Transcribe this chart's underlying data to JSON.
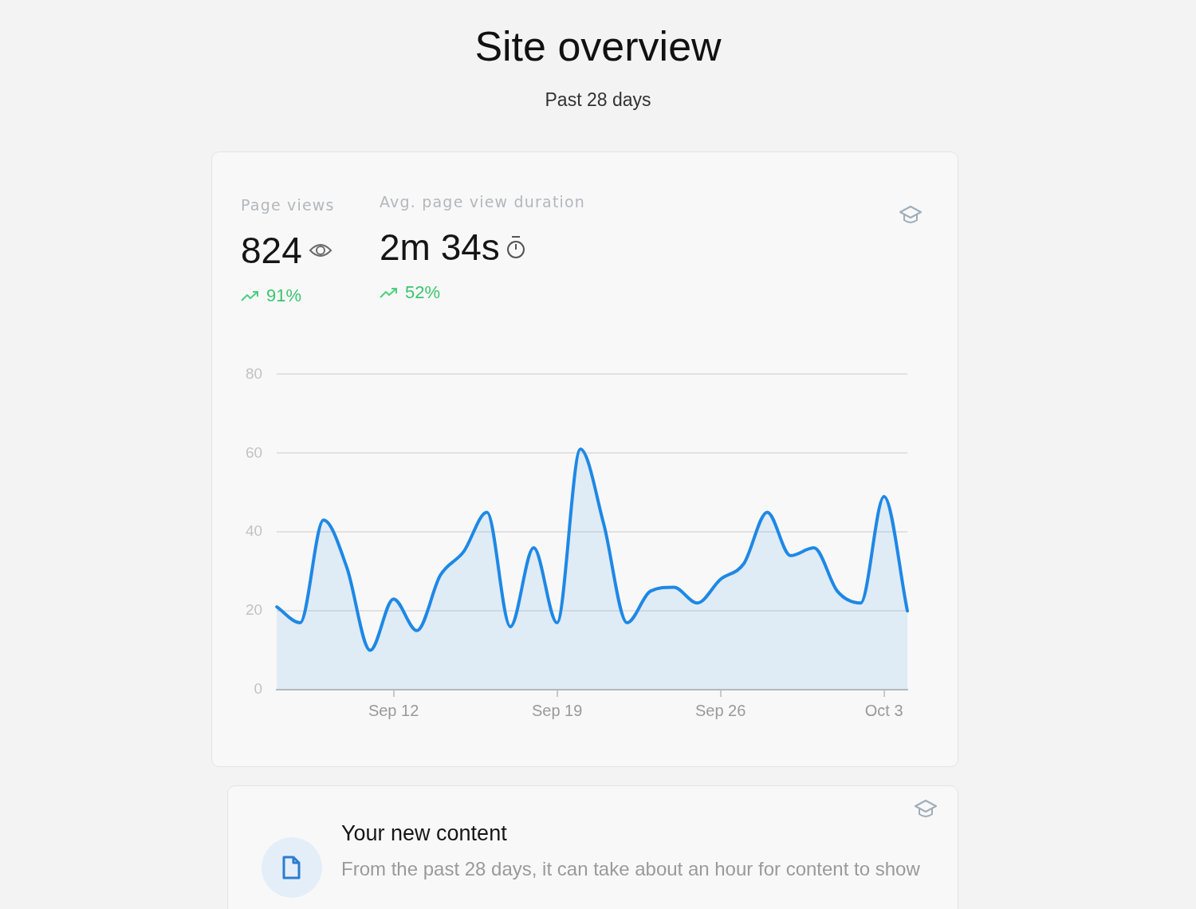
{
  "chart_data": {
    "type": "area",
    "title": "Site overview",
    "subtitle": "Past 28 days",
    "annotations": [
      "Page views",
      "824",
      "91%",
      "Avg. page view duration",
      "2m 34s",
      "52%",
      "Your new content",
      "From the past 28 days, it can take about an hour for content to show"
    ],
    "categories": [
      null,
      null,
      null,
      null,
      null,
      "Sep 12",
      null,
      null,
      null,
      null,
      null,
      null,
      "Sep 19",
      null,
      null,
      null,
      null,
      null,
      null,
      "Sep 26",
      null,
      null,
      null,
      null,
      null,
      null,
      "Oct 3",
      null
    ],
    "values": [
      21,
      17,
      43,
      31,
      10,
      23,
      15,
      29,
      35,
      45,
      16,
      36,
      17,
      61,
      42,
      17,
      25,
      26,
      22,
      28,
      32,
      45,
      34,
      36,
      25,
      22,
      49,
      20
    ],
    "color": "#1e88e5",
    "ylim": [
      0,
      80
    ],
    "yticks": [
      0,
      20,
      40,
      60,
      80
    ],
    "grid": "y",
    "marker": "none"
  }
}
